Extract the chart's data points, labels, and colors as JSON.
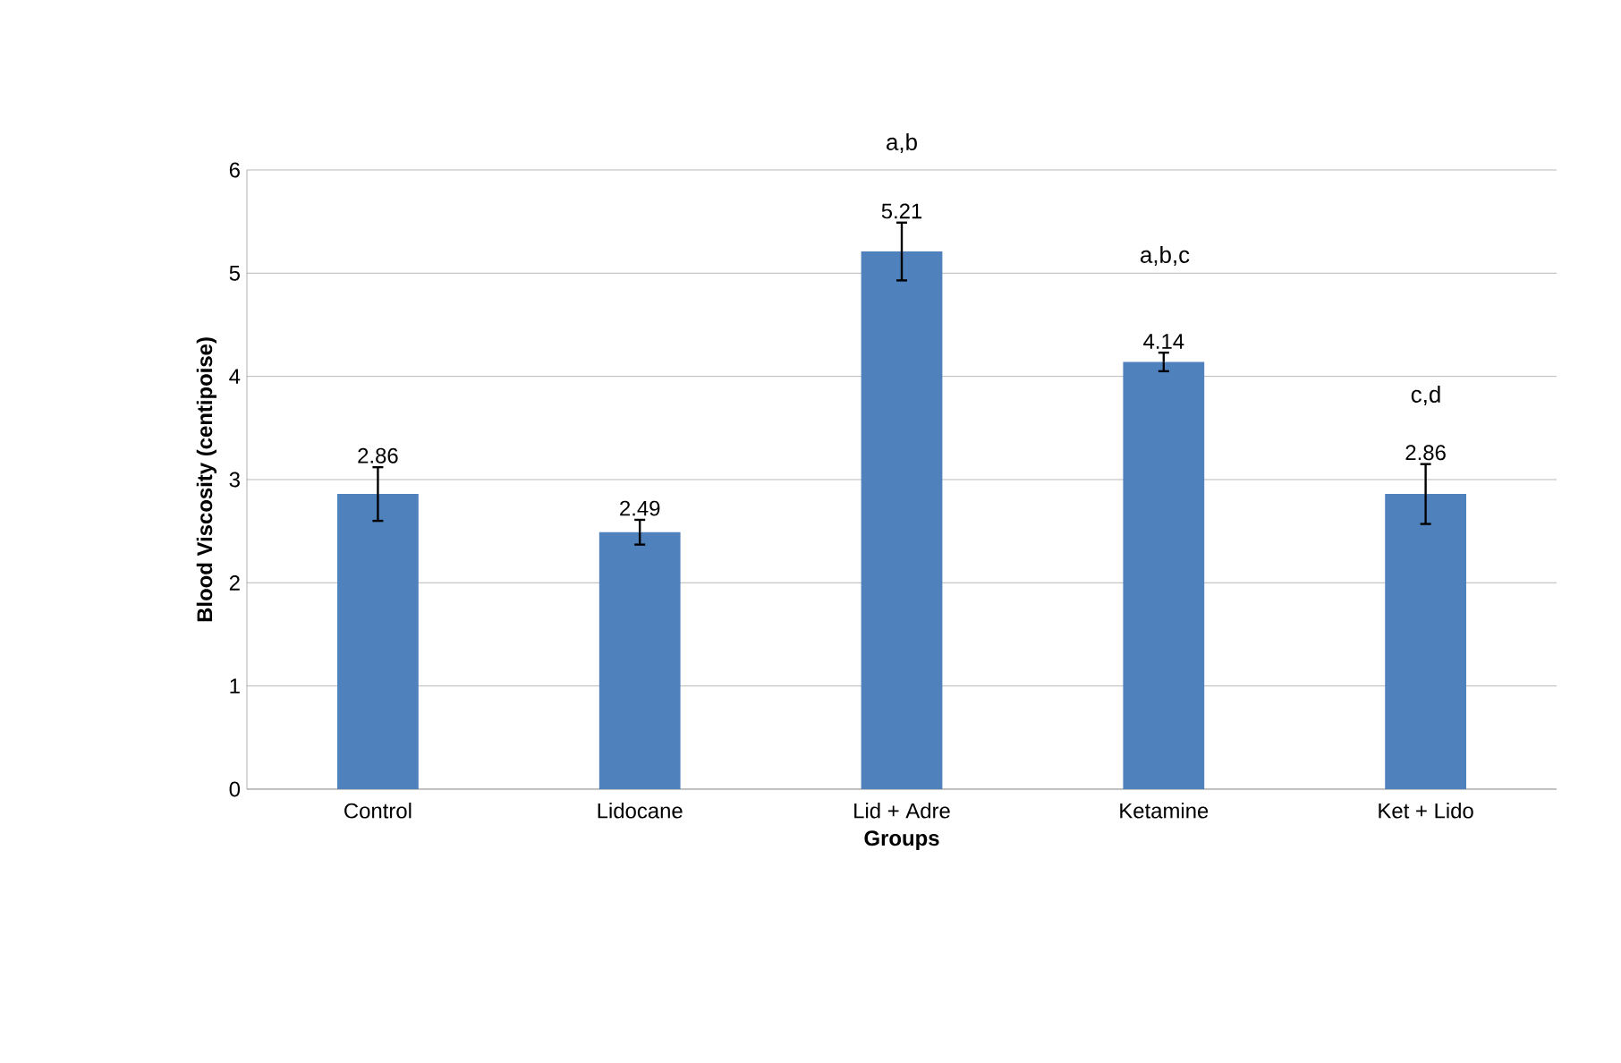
{
  "chart_data": {
    "type": "bar",
    "xlabel": "Groups",
    "ylabel": "Blood Viscosity (centipoise)",
    "categories": [
      "Control",
      "Lidocane",
      "Lid + Adre",
      "Ketamine",
      "Ket + Lido"
    ],
    "values": [
      2.86,
      2.49,
      5.21,
      4.14,
      2.86
    ],
    "errors": [
      0.26,
      0.12,
      0.28,
      0.09,
      0.29
    ],
    "color": "#4f81bd",
    "ylim": [
      0,
      6
    ],
    "yticks": [
      0,
      1,
      2,
      3,
      4,
      5,
      6
    ],
    "grid": "y",
    "data_labels": true,
    "annotations": [
      "a,b",
      "a,b,c",
      "c,d"
    ]
  }
}
